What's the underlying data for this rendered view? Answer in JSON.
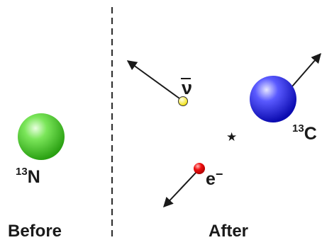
{
  "before": {
    "caption": "Before",
    "nucleus": {
      "mass_number": "13",
      "symbol": "N",
      "color": "#33cc22"
    }
  },
  "after": {
    "caption": "After",
    "nucleus": {
      "mass_number": "13",
      "symbol": "C",
      "color": "#1f1fe6"
    },
    "antineutrino": {
      "symbol": "ν",
      "color": "#ffee22"
    },
    "electron": {
      "symbol": "e",
      "charge": "−",
      "color": "#ee1111"
    },
    "decay_point": {
      "symbol": "★"
    }
  },
  "divider": {
    "style": "dashed"
  }
}
